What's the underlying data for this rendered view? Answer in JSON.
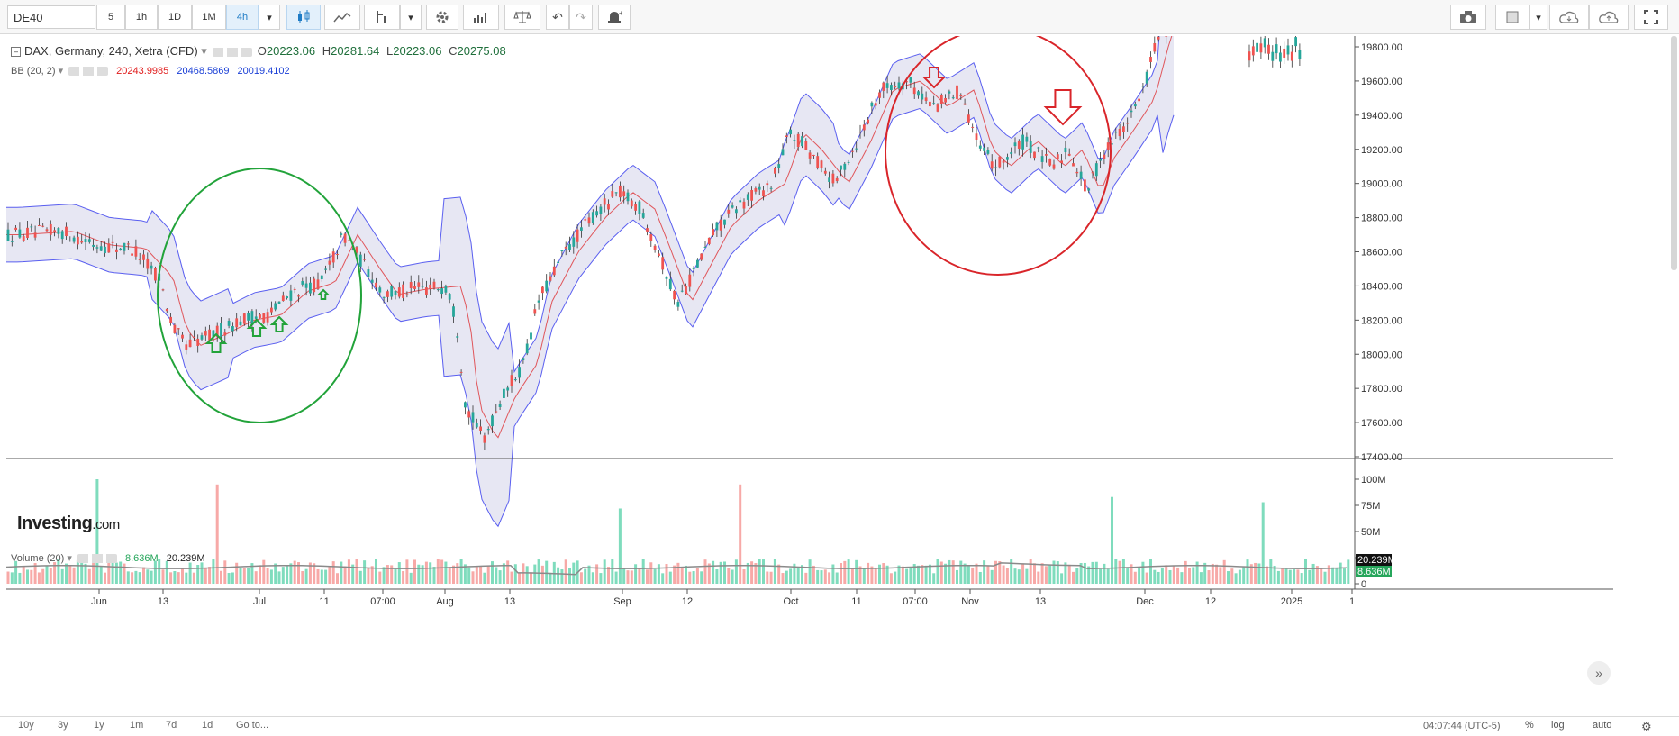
{
  "toolbar": {
    "symbol": "DE40",
    "intervals": [
      "5",
      "1h",
      "1D",
      "1M",
      "4h"
    ],
    "active_interval": "4h"
  },
  "legend": {
    "title": "DAX, Germany, 240, Xetra (CFD)",
    "o_label": "O",
    "o_value": "20223.06",
    "h_label": "H",
    "h_value": "20281.64",
    "l_label": "L",
    "l_value": "20223.06",
    "c_label": "C",
    "c_value": "20275.08",
    "bb_label": "BB (20, 2)",
    "bb_mid": "20243.9985",
    "bb_upper": "20468.5869",
    "bb_lower": "20019.4102",
    "vol_label": "Volume (20)",
    "vol_value": "8.636M",
    "vol_ma": "20.239M"
  },
  "watermark": {
    "brand": "Investing",
    "suffix": ".com"
  },
  "price_axis": [
    "19800.00",
    "19600.00",
    "19400.00",
    "19200.00",
    "19000.00",
    "18800.00",
    "18600.00",
    "18400.00",
    "18200.00",
    "18000.00",
    "17800.00",
    "17600.00",
    "17400.00"
  ],
  "volume_axis": [
    "100M",
    "75M",
    "50M",
    "25M",
    "0"
  ],
  "volume_tags": {
    "ma": "20.239M",
    "last": "8.636M"
  },
  "time_axis": [
    "Jun",
    "13",
    "Jul",
    "11",
    "07:00",
    "Aug",
    "13",
    "Sep",
    "12",
    "Oct",
    "11",
    "07:00",
    "Nov",
    "13",
    "Dec",
    "12",
    "2025",
    "1"
  ],
  "range_buttons": [
    "10y",
    "3y",
    "1y",
    "1m",
    "7d",
    "1d",
    "Go to..."
  ],
  "status": {
    "clock": "04:07:44 (UTC-5)",
    "percent": "%",
    "log": "log",
    "auto": "auto"
  },
  "colors": {
    "up_candle": "#26a69a",
    "down_candle": "#ef5350",
    "bb_band": "#5a5ff0",
    "bb_fill": "#e4e4f2",
    "bb_mid": "#e0565b",
    "vol_up": "#7fdcbd",
    "vol_down": "#f7a9a7",
    "annotation_green": "#22a33a",
    "annotation_red": "#d9252a"
  },
  "chart_data": {
    "type": "candlestick",
    "symbol": "DAX, Germany, 240, Xetra (CFD)",
    "ylim": [
      17400,
      19900
    ],
    "bollinger_mid": [
      {
        "x": "Jun",
        "y": 18700
      },
      {
        "x": "13",
        "y": 18500
      },
      {
        "x": "Jul",
        "y": 18200
      },
      {
        "x": "11",
        "y": 18400
      },
      {
        "x": "07:00",
        "y": 18500
      },
      {
        "x": "Aug",
        "y": 18300
      },
      {
        "x": "13",
        "y": 17700
      },
      {
        "x": "Sep",
        "y": 18600
      },
      {
        "x": "12",
        "y": 18400
      },
      {
        "x": "Oct",
        "y": 19000
      },
      {
        "x": "11",
        "y": 19300
      },
      {
        "x": "07:00",
        "y": 19500
      },
      {
        "x": "Nov",
        "y": 19250
      },
      {
        "x": "13",
        "y": 19200
      },
      {
        "x": "Dec",
        "y": 19700
      }
    ],
    "volume_peaks": [
      {
        "x": "Jun",
        "value": 100
      },
      {
        "x": "13",
        "value": 95
      },
      {
        "x": "Aug",
        "value": 72
      },
      {
        "x": "Sep",
        "value": 95
      },
      {
        "x": "Nov",
        "value": 83
      },
      {
        "x": "Dec",
        "value": 78
      }
    ]
  }
}
